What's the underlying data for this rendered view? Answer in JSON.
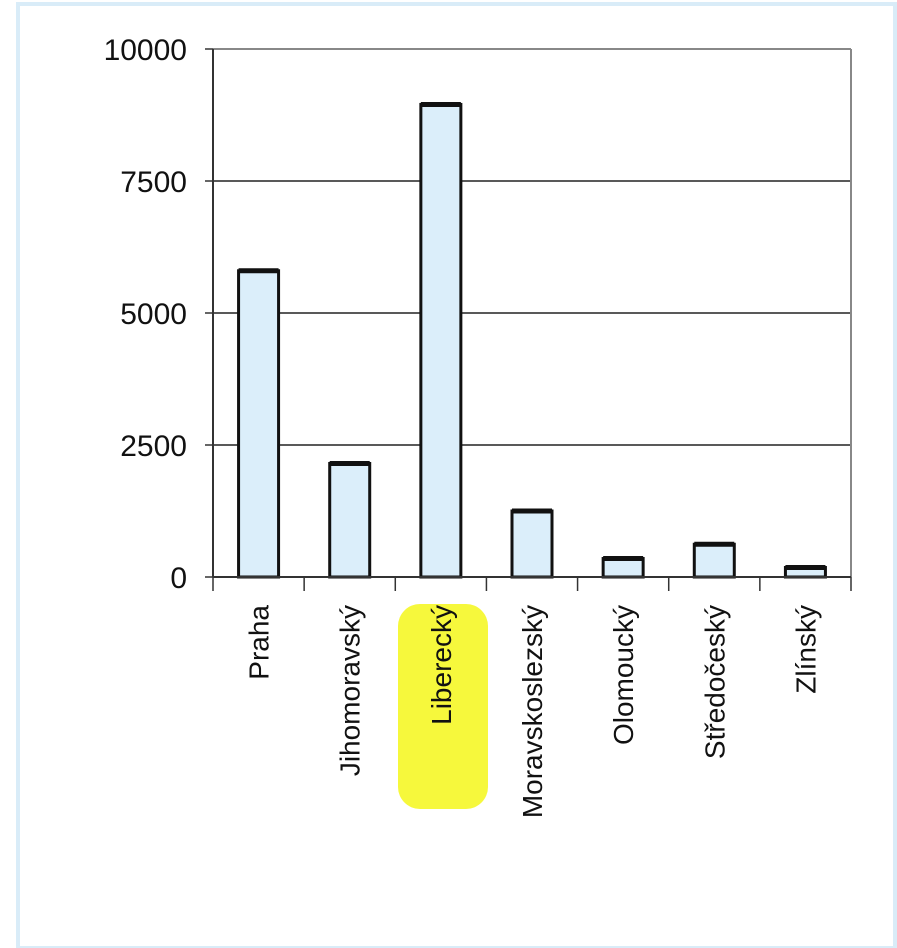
{
  "colors": {
    "frame_border": "#d9ecf8",
    "bar_fill": "#dbeefa",
    "bar_stroke": "#111111",
    "highlight": "#f4f71a",
    "gridline": "#222222",
    "plot_border": "#888888"
  },
  "chart_data": {
    "type": "bar",
    "title": "",
    "xlabel": "",
    "ylabel": "",
    "ylim": [
      0,
      10000
    ],
    "y_ticks": [
      "0",
      "2500",
      "5000",
      "7500",
      "10000"
    ],
    "grid": true,
    "legend": "none",
    "categories": [
      "Praha",
      "Jihomoravský",
      "Liberecký",
      "Moravskoslezský",
      "Olomoucký",
      "Středočeský",
      "Zlínský"
    ],
    "values": [
      5800,
      2150,
      8950,
      1250,
      350,
      620,
      180
    ],
    "highlighted_category": "Liberecký"
  }
}
